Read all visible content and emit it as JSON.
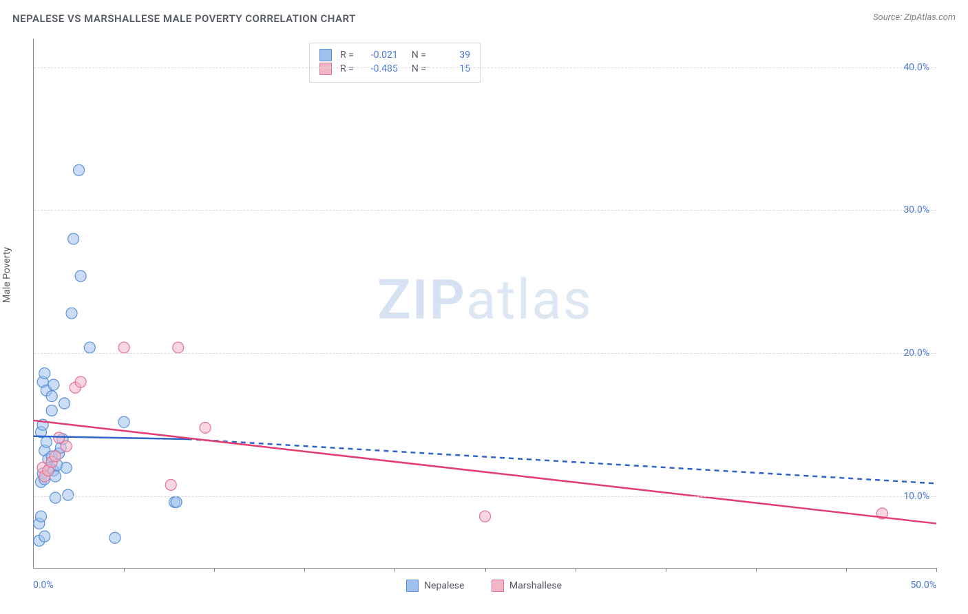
{
  "title": "NEPALESE VS MARSHALLESE MALE POVERTY CORRELATION CHART",
  "source_text": "Source: ZipAtlas.com",
  "watermark_zip": "ZIP",
  "watermark_atlas": "atlas",
  "yaxis_title": "Male Poverty",
  "chart": {
    "type": "scatter",
    "background_color": "#ffffff",
    "grid_color": "#d8dce2",
    "axis_color": "#888888",
    "tick_label_color": "#4a78d4",
    "tick_fontsize": 14,
    "title_fontsize": 15,
    "title_color": "#555a63",
    "xlim": [
      0,
      50
    ],
    "ylim": [
      5,
      42
    ],
    "ygrid_values": [
      10,
      20,
      30,
      40
    ],
    "ytick_labels": [
      "10.0%",
      "20.0%",
      "30.0%",
      "40.0%"
    ],
    "xlabel_min": "0.0%",
    "xlabel_max": "50.0%",
    "xtick_positions": [
      5,
      10,
      15,
      20,
      25,
      30,
      35,
      40,
      45,
      50
    ],
    "marker_radius": 8,
    "marker_opacity": 0.55,
    "line_width": 2.5,
    "series": {
      "nepalese": {
        "label": "Nepalese",
        "color_fill": "#9fc1ec",
        "color_stroke": "#5a8fd8",
        "trend_color": "#2f64c9",
        "R": "-0.021",
        "N": "39",
        "trend_solid": {
          "x1": 0,
          "y1": 14.2,
          "x2": 8.5,
          "y2": 14.0
        },
        "trend_dashed": {
          "x1": 8.5,
          "y1": 14.0,
          "x2": 50,
          "y2": 10.9
        },
        "points": [
          [
            0.3,
            8.1
          ],
          [
            0.4,
            8.6
          ],
          [
            0.3,
            6.9
          ],
          [
            0.6,
            7.2
          ],
          [
            1.2,
            9.9
          ],
          [
            2.1,
            22.8
          ],
          [
            2.5,
            32.8
          ],
          [
            2.2,
            28.0
          ],
          [
            2.6,
            25.4
          ],
          [
            3.1,
            20.4
          ],
          [
            0.5,
            18.0
          ],
          [
            0.6,
            18.6
          ],
          [
            0.7,
            17.4
          ],
          [
            1.0,
            17.0
          ],
          [
            1.1,
            17.8
          ],
          [
            0.4,
            14.5
          ],
          [
            0.5,
            15.0
          ],
          [
            0.6,
            13.2
          ],
          [
            0.7,
            13.8
          ],
          [
            0.8,
            12.6
          ],
          [
            0.9,
            12.0
          ],
          [
            1.0,
            12.8
          ],
          [
            1.1,
            11.8
          ],
          [
            1.2,
            11.4
          ],
          [
            1.3,
            12.2
          ],
          [
            1.4,
            13.0
          ],
          [
            1.5,
            13.4
          ],
          [
            1.6,
            14.0
          ],
          [
            1.7,
            16.5
          ],
          [
            1.8,
            12.0
          ],
          [
            0.4,
            11.0
          ],
          [
            0.5,
            11.6
          ],
          [
            0.6,
            11.2
          ],
          [
            5.0,
            15.2
          ],
          [
            4.5,
            7.1
          ],
          [
            7.8,
            9.6
          ],
          [
            7.9,
            9.6
          ],
          [
            1.9,
            10.1
          ],
          [
            1.0,
            16.0
          ]
        ]
      },
      "marshallese": {
        "label": "Marshallese",
        "color_fill": "#f2b7c7",
        "color_stroke": "#e76f94",
        "trend_color": "#e23f70",
        "R": "-0.485",
        "N": "15",
        "trend_solid": {
          "x1": 0,
          "y1": 15.3,
          "x2": 50,
          "y2": 8.1
        },
        "trend_dashed": null,
        "points": [
          [
            0.5,
            12.0
          ],
          [
            0.6,
            11.4
          ],
          [
            0.8,
            11.8
          ],
          [
            1.0,
            12.4
          ],
          [
            1.2,
            12.8
          ],
          [
            1.4,
            14.1
          ],
          [
            2.3,
            17.6
          ],
          [
            2.6,
            18.0
          ],
          [
            5.0,
            20.4
          ],
          [
            8.0,
            20.4
          ],
          [
            9.5,
            14.8
          ],
          [
            7.6,
            10.8
          ],
          [
            25.0,
            8.6
          ],
          [
            47.0,
            8.8
          ],
          [
            1.8,
            13.5
          ]
        ]
      }
    }
  },
  "legend_top_label_R": "R =",
  "legend_top_label_N": "N ="
}
